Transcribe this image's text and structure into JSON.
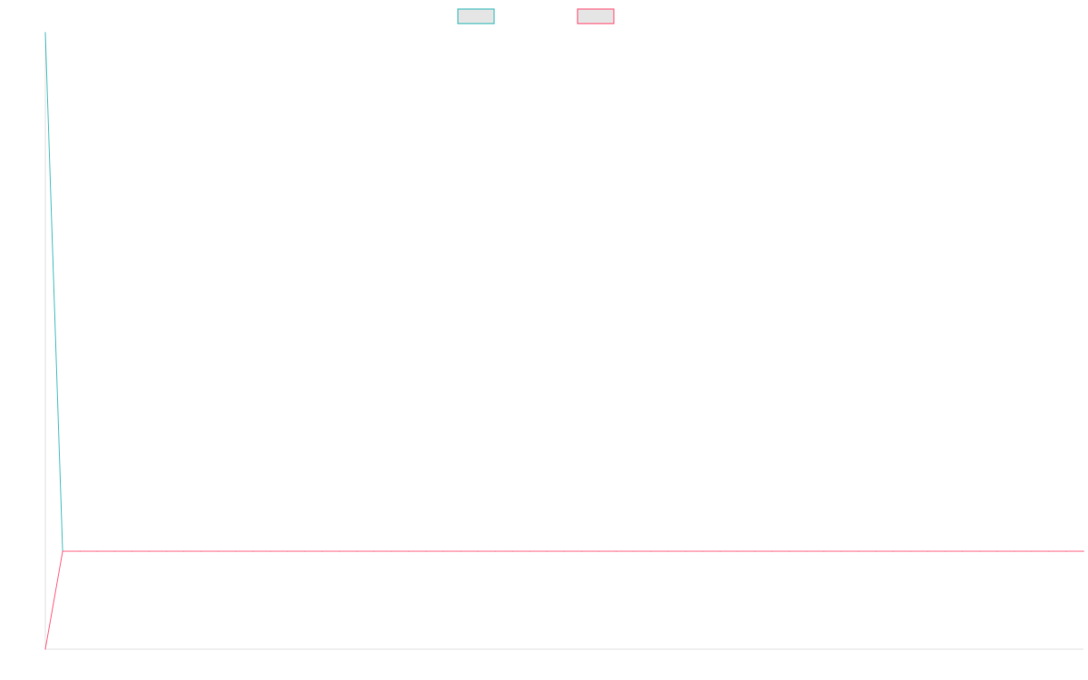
{
  "chart_data": {
    "type": "line",
    "title": "",
    "xlabel": "",
    "ylabel": "",
    "legend_position": "top-center",
    "grid": false,
    "x": [
      0,
      1,
      2,
      3,
      4,
      5,
      6,
      7,
      8,
      9,
      10,
      11,
      12,
      13,
      14,
      15,
      16,
      17,
      18,
      19,
      20,
      21,
      22,
      23,
      24,
      25,
      26,
      27,
      28,
      29,
      30,
      31,
      32,
      33,
      34,
      35,
      36,
      37,
      38,
      39,
      40,
      41,
      42,
      43,
      44,
      45,
      46,
      47,
      48,
      49,
      50,
      51,
      52,
      53,
      54,
      55,
      56,
      57,
      58,
      59,
      60
    ],
    "xlim": [
      0,
      60
    ],
    "ylim": [
      -1,
      5.3
    ],
    "series": [
      {
        "color": "#4bc0c0",
        "fill": "#e5e5e5",
        "values": [
          5.3,
          0.001,
          0.0005,
          0.0003,
          0.0002,
          0.0001,
          0.0001,
          0.0001,
          0.0001,
          0.0001,
          0.0001,
          0.0001,
          0.0001,
          0.0001,
          0.0001,
          0.0001,
          0.0001,
          0.0001,
          0.0001,
          0.0001,
          0.0001,
          0.0001,
          0.0001,
          0.0001,
          0.0001,
          0.0001,
          0.0001,
          0.0001,
          0.0001,
          0.0001,
          0.0001,
          0.0001,
          0.0001,
          0.0001,
          0.0001,
          0.0001,
          0.0001,
          0.0001,
          0.0001,
          0.0001,
          0.0001,
          0.0001,
          0.0001,
          0.0001,
          0.0001,
          0.0001,
          0.0001,
          0.0001,
          0.0001,
          0.0001,
          0.0001,
          0.0001,
          0.0001,
          0.0001,
          0.0001,
          0.0001,
          0.0001,
          0.0001,
          0.0001,
          0.0001,
          0.0001
        ]
      },
      {
        "color": "#ff6384",
        "fill": "#e5e5e5",
        "values": [
          -1,
          0.0,
          0.0,
          0.0,
          0.0,
          0.0,
          0.0,
          0.0,
          0.0,
          0.0,
          0.0,
          0.0,
          0.0,
          0.0,
          0.0,
          0.0,
          0.0,
          0.0,
          0.0,
          0.0,
          0.0,
          0.0,
          0.0,
          0.0,
          0.0,
          0.0,
          0.0,
          0.0,
          0.0,
          0.0,
          0.0,
          0.0,
          0.0,
          0.0,
          0.0,
          0.0,
          0.0,
          0.0,
          0.0,
          0.0,
          0.0,
          0.0,
          0.0,
          0.0,
          0.0,
          0.0,
          0.0,
          0.0,
          0.0,
          0.0,
          0.0,
          0.0,
          0.0,
          0.0,
          0.0,
          0.0,
          0.0,
          0.0,
          0.0,
          0.0,
          0.0
        ]
      }
    ],
    "colors": {
      "background": "#ffffff",
      "axis": "#e0e0e0"
    }
  }
}
